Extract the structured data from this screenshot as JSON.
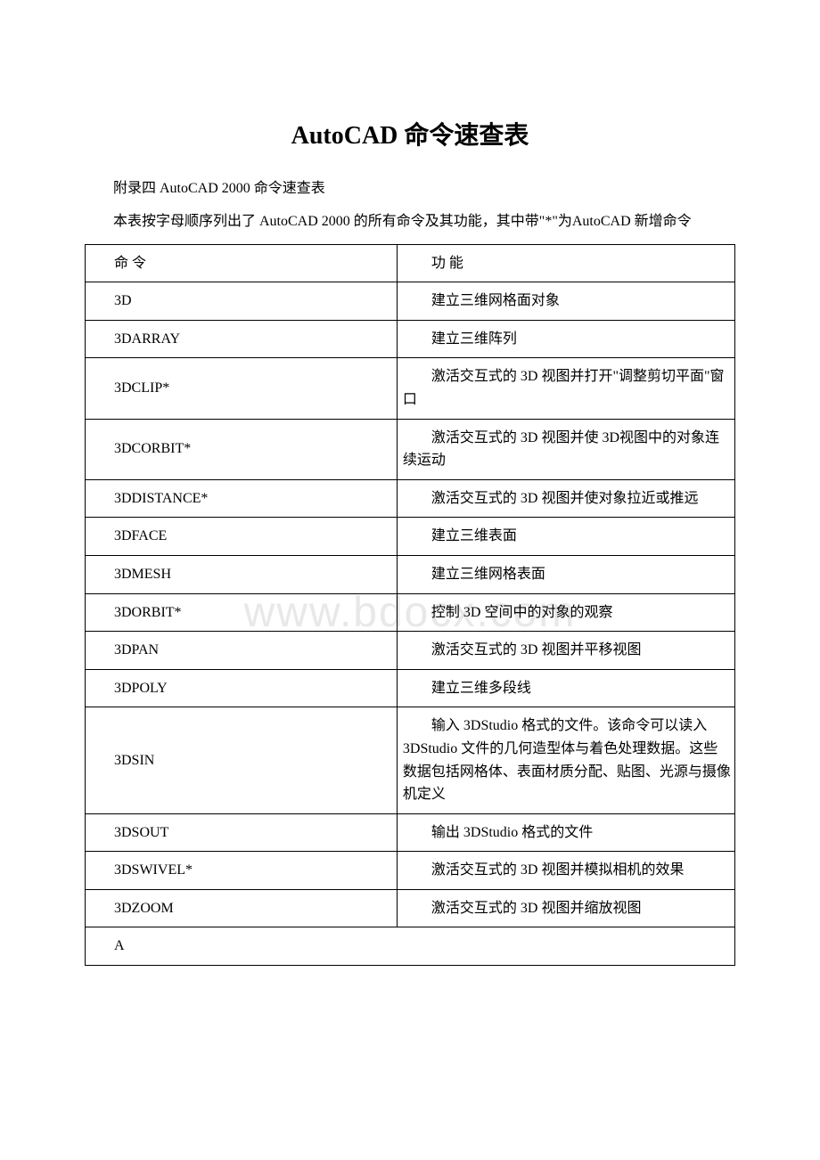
{
  "title": "AutoCAD 命令速查表",
  "intro": [
    "附录四 AutoCAD 2000 命令速查表",
    "本表按字母顺序列出了 AutoCAD 2000 的所有命令及其功能，其中带\"*\"为AutoCAD 新增命令"
  ],
  "watermark": "www.bdocx.com",
  "table": {
    "header": {
      "cmd": "命 令",
      "desc": "功 能"
    },
    "rows": [
      {
        "cmd": "3D",
        "desc": "建立三维网格面对象"
      },
      {
        "cmd": "3DARRAY",
        "desc": "建立三维阵列"
      },
      {
        "cmd": "3DCLIP*",
        "desc": "激活交互式的 3D 视图并打开\"调整剪切平面\"窗口"
      },
      {
        "cmd": "3DCORBIT*",
        "desc": "激活交互式的 3D 视图并使 3D视图中的对象连续运动"
      },
      {
        "cmd": "3DDISTANCE*",
        "desc": "激活交互式的 3D 视图并使对象拉近或推远"
      },
      {
        "cmd": "3DFACE",
        "desc": "建立三维表面"
      },
      {
        "cmd": "3DMESH",
        "desc": "建立三维网格表面"
      },
      {
        "cmd": "3DORBIT*",
        "desc": "控制 3D 空间中的对象的观察"
      },
      {
        "cmd": "3DPAN",
        "desc": "激活交互式的 3D 视图并平移视图"
      },
      {
        "cmd": "3DPOLY",
        "desc": "建立三维多段线"
      },
      {
        "cmd": "3DSIN",
        "desc": "输入 3DStudio 格式的文件。该命令可以读入 3DStudio 文件的几何造型体与着色处理数据。这些数据包括网格体、表面材质分配、贴图、光源与摄像机定义"
      },
      {
        "cmd": "3DSOUT",
        "desc": "输出 3DStudio 格式的文件"
      },
      {
        "cmd": "3DSWIVEL*",
        "desc": "激活交互式的 3D 视图并模拟相机的效果"
      },
      {
        "cmd": "3DZOOM",
        "desc": "激活交互式的 3D 视图并缩放视图"
      }
    ],
    "footer_row": "A"
  },
  "colors": {
    "text": "#000000",
    "background": "#ffffff",
    "border": "#000000",
    "watermark": "#e8e8e8"
  }
}
